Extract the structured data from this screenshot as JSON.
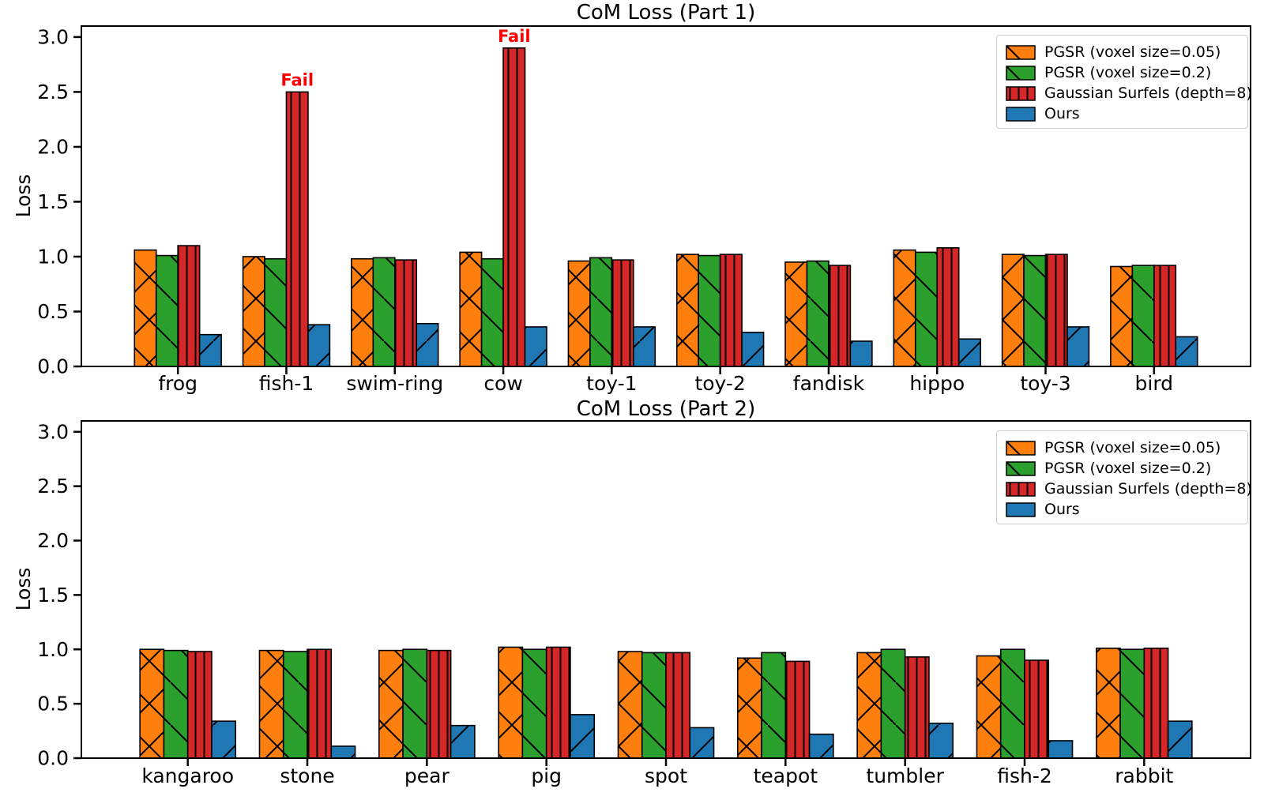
{
  "figure": {
    "background": "#ffffff",
    "text_color": "#000000",
    "fail_color": "#ff0000"
  },
  "legend": {
    "items": [
      {
        "label": "PGSR (voxel size=0.05)",
        "color": "#ff7f0e",
        "hatch": "x"
      },
      {
        "label": "PGSR (voxel size=0.2)",
        "color": "#2ca02c",
        "hatch": "\\"
      },
      {
        "label": "Gaussian Surfels (depth=8)",
        "color": "#d62728",
        "hatch": "|"
      },
      {
        "label": "Ours",
        "color": "#1f77b4",
        "hatch": "/"
      }
    ]
  },
  "chart_data": [
    {
      "type": "bar",
      "title": "CoM Loss (Part 1)",
      "xlabel": "",
      "ylabel": "Loss",
      "ylim": [
        0,
        3.1
      ],
      "yticks": [
        0.0,
        0.5,
        1.0,
        1.5,
        2.0,
        2.5,
        3.0
      ],
      "grid": false,
      "legend_position": "upper right",
      "categories": [
        "frog",
        "fish-1",
        "swim-ring",
        "cow",
        "toy-1",
        "toy-2",
        "fandisk",
        "hippo",
        "toy-3",
        "bird"
      ],
      "series": [
        {
          "name": "PGSR (voxel size=0.05)",
          "color": "#ff7f0e",
          "hatch": "x",
          "values": [
            1.06,
            1.0,
            0.98,
            1.04,
            0.96,
            1.02,
            0.95,
            1.06,
            1.02,
            0.91
          ]
        },
        {
          "name": "PGSR (voxel size=0.2)",
          "color": "#2ca02c",
          "hatch": "\\",
          "values": [
            1.01,
            0.98,
            0.99,
            0.98,
            0.99,
            1.01,
            0.96,
            1.04,
            1.01,
            0.92
          ]
        },
        {
          "name": "Gaussian Surfels (depth=8)",
          "color": "#d62728",
          "hatch": "|",
          "values": [
            1.1,
            2.5,
            0.97,
            2.9,
            0.97,
            1.02,
            0.92,
            1.08,
            1.02,
            0.92
          ]
        },
        {
          "name": "Ours",
          "color": "#1f77b4",
          "hatch": "/",
          "values": [
            0.29,
            0.38,
            0.39,
            0.36,
            0.36,
            0.31,
            0.23,
            0.25,
            0.36,
            0.27
          ]
        }
      ],
      "annotations": [
        {
          "text": "Fail",
          "category": "fish-1",
          "series": "Gaussian Surfels (depth=8)",
          "color": "#ff0000"
        },
        {
          "text": "Fail",
          "category": "cow",
          "series": "Gaussian Surfels (depth=8)",
          "color": "#ff0000"
        }
      ]
    },
    {
      "type": "bar",
      "title": "CoM Loss (Part 2)",
      "xlabel": "",
      "ylabel": "Loss",
      "ylim": [
        0,
        3.1
      ],
      "yticks": [
        0.0,
        0.5,
        1.0,
        1.5,
        2.0,
        2.5,
        3.0
      ],
      "grid": false,
      "legend_position": "upper right",
      "categories": [
        "kangaroo",
        "stone",
        "pear",
        "pig",
        "spot",
        "teapot",
        "tumbler",
        "fish-2",
        "rabbit"
      ],
      "series": [
        {
          "name": "PGSR (voxel size=0.05)",
          "color": "#ff7f0e",
          "hatch": "x",
          "values": [
            1.0,
            0.99,
            0.99,
            1.02,
            0.98,
            0.92,
            0.97,
            0.94,
            1.01
          ]
        },
        {
          "name": "PGSR (voxel size=0.2)",
          "color": "#2ca02c",
          "hatch": "\\",
          "values": [
            0.99,
            0.98,
            1.0,
            1.0,
            0.97,
            0.97,
            1.0,
            1.0,
            1.0
          ]
        },
        {
          "name": "Gaussian Surfels (depth=8)",
          "color": "#d62728",
          "hatch": "|",
          "values": [
            0.98,
            1.0,
            0.99,
            1.02,
            0.97,
            0.89,
            0.93,
            0.9,
            1.01
          ]
        },
        {
          "name": "Ours",
          "color": "#1f77b4",
          "hatch": "/",
          "values": [
            0.34,
            0.11,
            0.3,
            0.4,
            0.28,
            0.22,
            0.32,
            0.16,
            0.34
          ]
        }
      ],
      "annotations": []
    }
  ]
}
